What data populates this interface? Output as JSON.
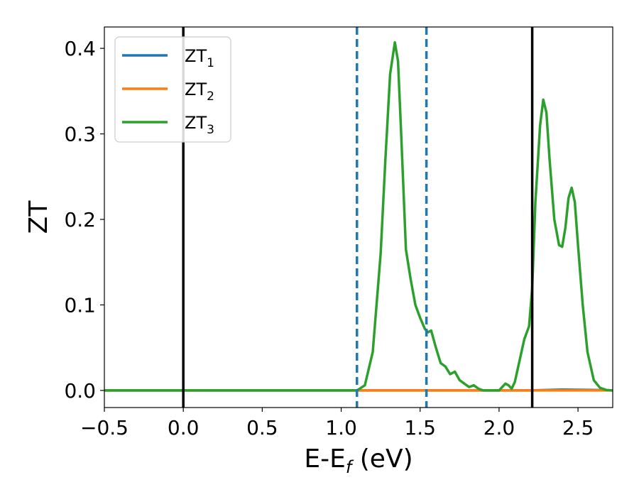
{
  "chart_data": {
    "type": "line",
    "xlabel_main": "E-E",
    "xlabel_sub": "f",
    "xlabel_tail": " (eV)",
    "ylabel": "ZT",
    "xlim": [
      -0.5,
      2.72
    ],
    "ylim": [
      -0.02,
      0.425
    ],
    "xticks": [
      -0.5,
      0.0,
      0.5,
      1.0,
      1.5,
      2.0,
      2.5
    ],
    "xtick_labels": [
      "−0.5",
      "0.0",
      "0.5",
      "1.0",
      "1.5",
      "2.0",
      "2.5"
    ],
    "yticks": [
      0.0,
      0.1,
      0.2,
      0.3,
      0.4
    ],
    "ytick_labels": [
      "0.0",
      "0.1",
      "0.2",
      "0.3",
      "0.4"
    ],
    "grid": false,
    "legend_placement": "upper-left",
    "vlines": [
      {
        "x": 0.0,
        "style": "solid",
        "color": "#000000"
      },
      {
        "x": 2.21,
        "style": "solid",
        "color": "#000000"
      },
      {
        "x": 1.1,
        "style": "dashed",
        "color": "#1f77b4"
      },
      {
        "x": 1.54,
        "style": "dashed",
        "color": "#1f77b4"
      }
    ],
    "series": [
      {
        "name": "ZT",
        "name_sub": "1",
        "color": "#1f77b4",
        "x": [
          -0.5,
          1.0,
          2.0,
          2.2,
          2.4,
          2.6,
          2.72
        ],
        "y": [
          0.0,
          0.0,
          0.0,
          0.0,
          0.001,
          0.0005,
          0.0
        ]
      },
      {
        "name": "ZT",
        "name_sub": "2",
        "color": "#ff7f0e",
        "x": [
          -0.5,
          1.0,
          2.0,
          2.72
        ],
        "y": [
          0.0,
          0.0,
          0.0,
          0.0
        ]
      },
      {
        "name": "ZT",
        "name_sub": "3",
        "color": "#2ca02c",
        "x": [
          -0.5,
          1.0,
          1.1,
          1.15,
          1.2,
          1.25,
          1.28,
          1.31,
          1.34,
          1.36,
          1.38,
          1.41,
          1.44,
          1.47,
          1.5,
          1.53,
          1.55,
          1.57,
          1.6,
          1.63,
          1.66,
          1.69,
          1.72,
          1.75,
          1.78,
          1.81,
          1.84,
          1.87,
          1.9,
          1.95,
          2.0,
          2.04,
          2.06,
          2.08,
          2.1,
          2.13,
          2.16,
          2.19,
          2.21,
          2.23,
          2.26,
          2.28,
          2.3,
          2.32,
          2.35,
          2.38,
          2.4,
          2.42,
          2.44,
          2.46,
          2.48,
          2.5,
          2.53,
          2.56,
          2.6,
          2.64,
          2.68,
          2.72
        ],
        "y": [
          0.0,
          0.0,
          0.0,
          0.006,
          0.045,
          0.16,
          0.27,
          0.37,
          0.407,
          0.385,
          0.3,
          0.165,
          0.13,
          0.1,
          0.085,
          0.072,
          0.068,
          0.07,
          0.05,
          0.032,
          0.028,
          0.019,
          0.022,
          0.012,
          0.008,
          0.004,
          0.006,
          0.002,
          0.0,
          0.0,
          0.0,
          0.008,
          0.006,
          0.002,
          0.01,
          0.035,
          0.06,
          0.075,
          0.12,
          0.22,
          0.31,
          0.34,
          0.325,
          0.27,
          0.2,
          0.17,
          0.168,
          0.19,
          0.225,
          0.237,
          0.22,
          0.17,
          0.1,
          0.045,
          0.012,
          0.003,
          0.0005,
          0.0
        ]
      }
    ]
  }
}
